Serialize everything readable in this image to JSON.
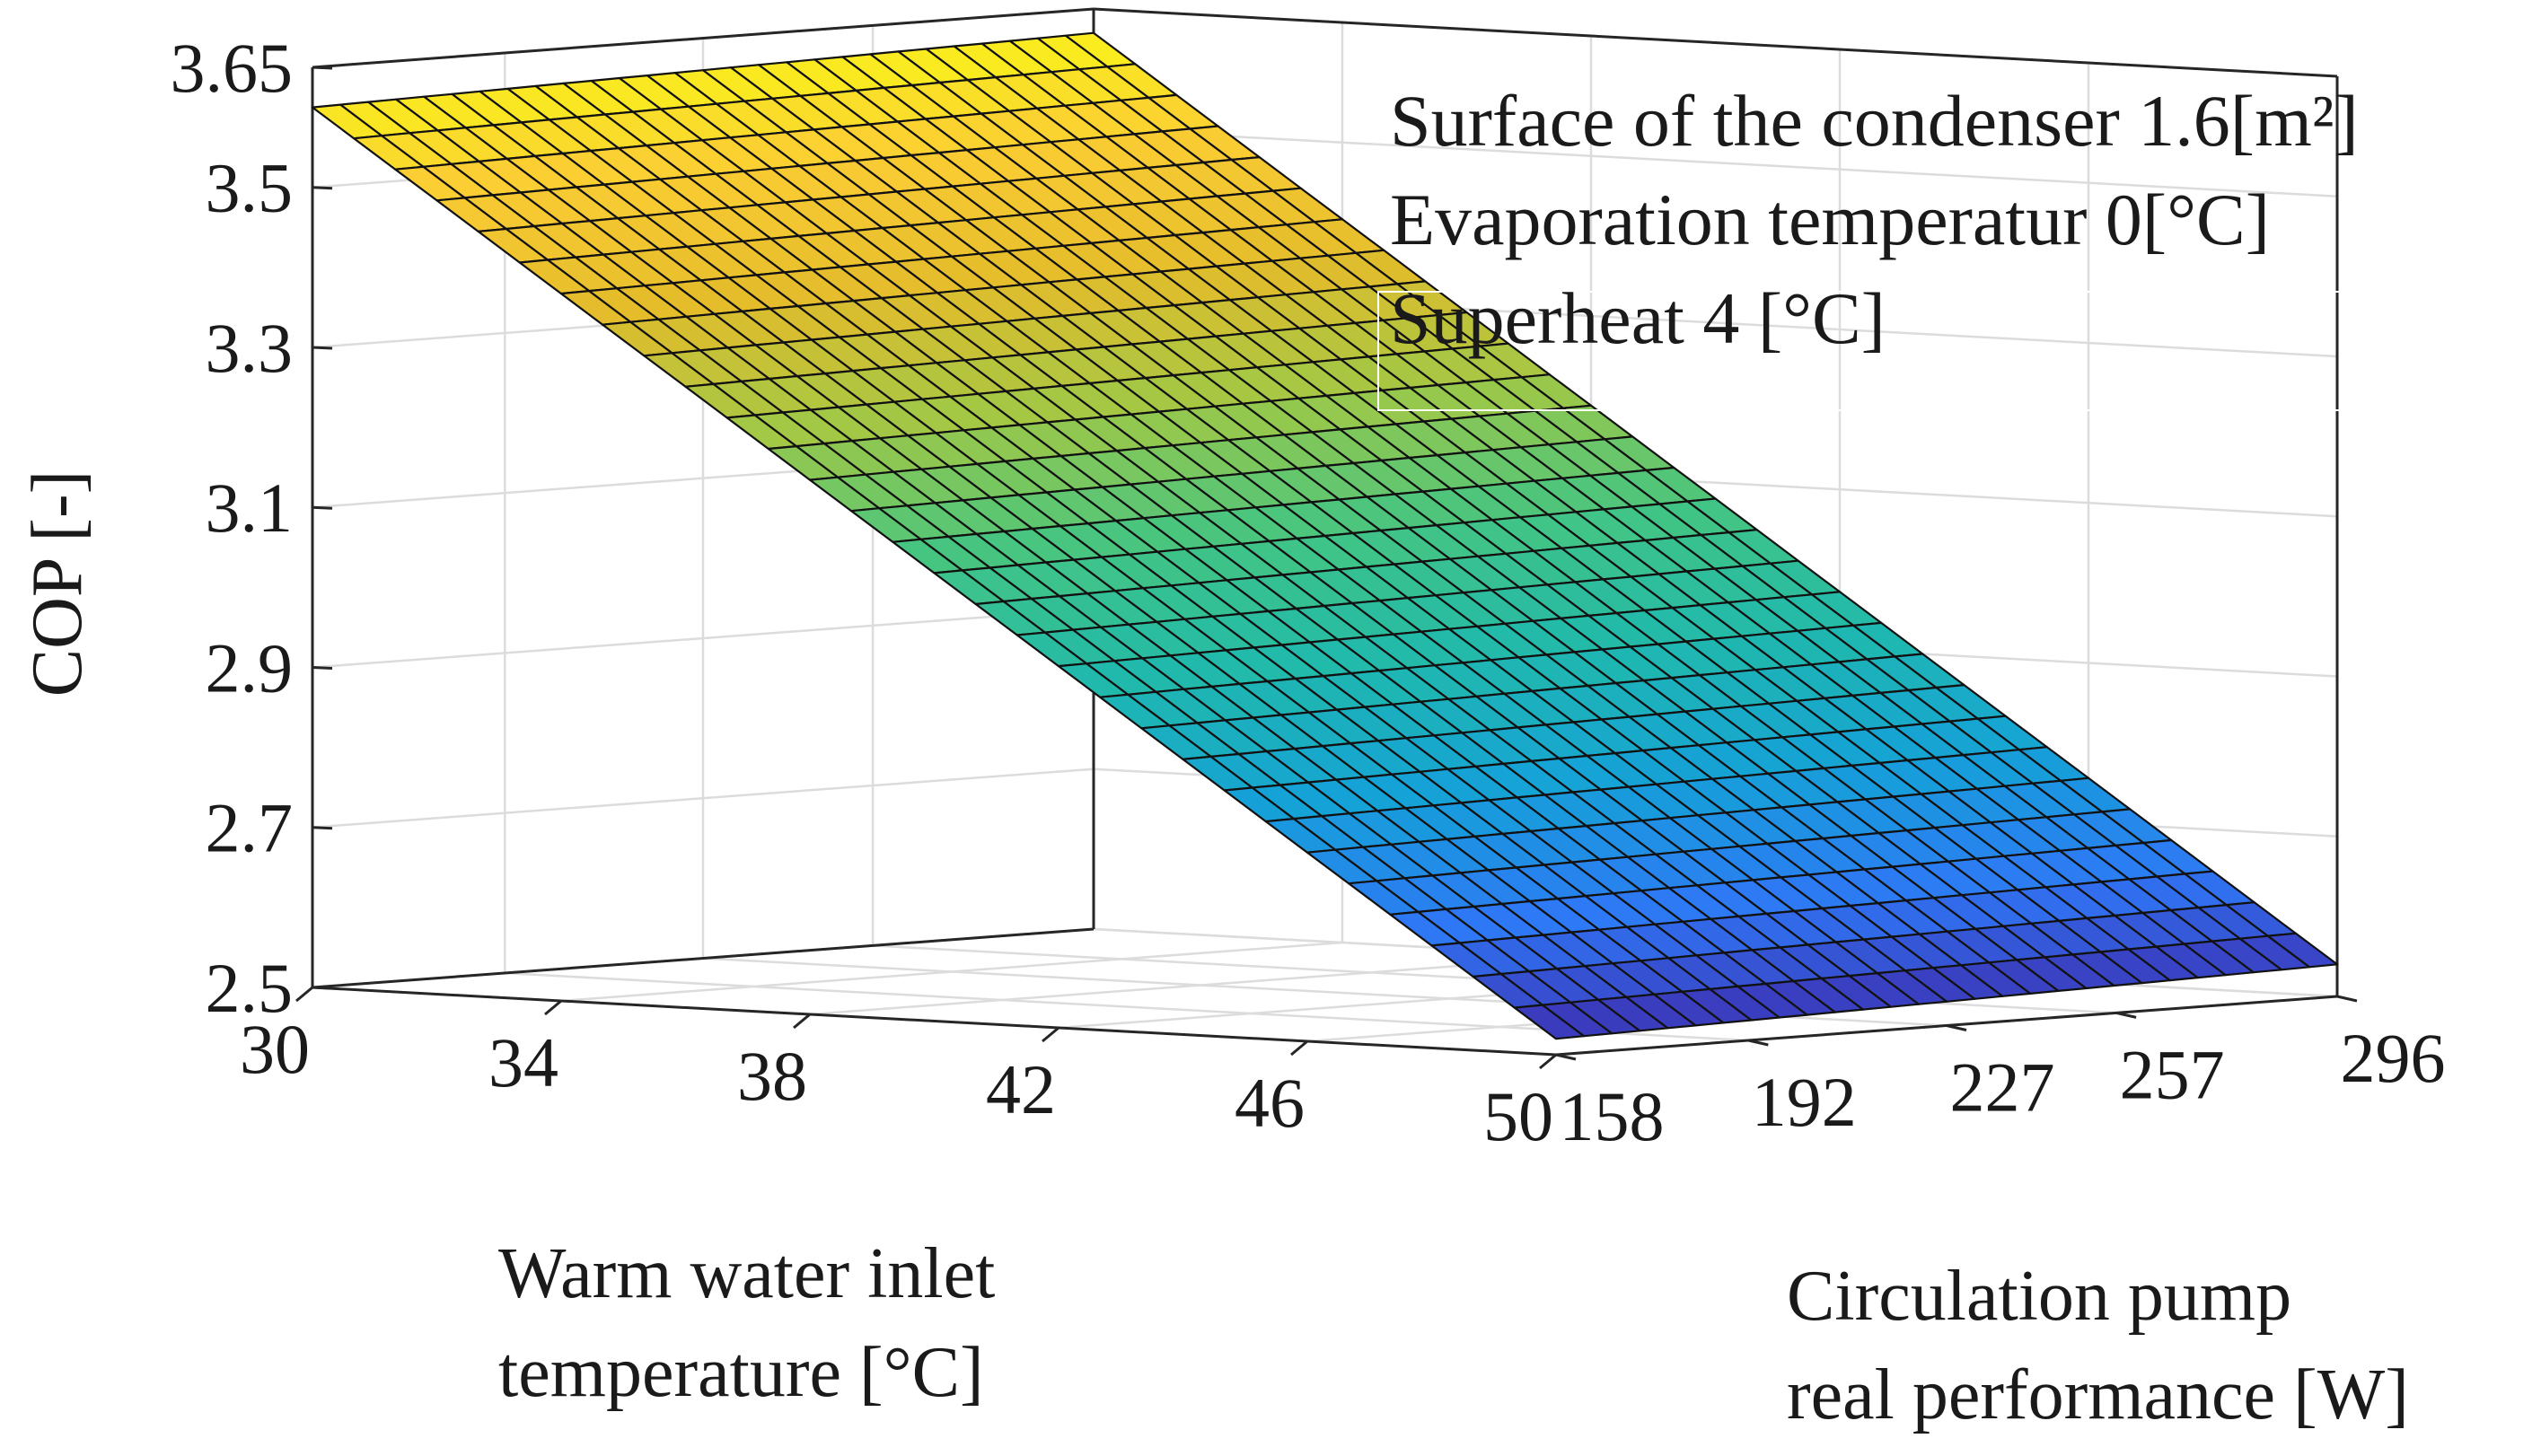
{
  "chart_data": {
    "type": "surface",
    "title": "",
    "xlabel": [
      "Warm water inlet",
      "temperature [°C]"
    ],
    "ylabel": [
      "Circulation pump",
      "real performance [W]"
    ],
    "zlabel": "COP [-]",
    "x_range": [
      30,
      50
    ],
    "y_range": [
      158,
      296
    ],
    "zlim": [
      2.5,
      3.65
    ],
    "x_ticks": [
      30,
      34,
      38,
      42,
      46,
      50
    ],
    "x_tick_labels": [
      "30",
      "34",
      "38",
      "42",
      "46",
      "50"
    ],
    "y_ticks": [
      158,
      192,
      227,
      257,
      296
    ],
    "y_tick_labels": [
      "158",
      "192",
      "227",
      "257",
      "296"
    ],
    "z_ticks": [
      2.5,
      2.7,
      2.9,
      3.1,
      3.3,
      3.5,
      3.65
    ],
    "z_tick_labels": [
      "2.5",
      "2.7",
      "2.9",
      "3.1",
      "3.3",
      "3.5",
      "3.65"
    ],
    "grid": true,
    "colormap": [
      "#3e26a8",
      "#2f77f6",
      "#15a1d8",
      "#20b9ad",
      "#44c582",
      "#a0c846",
      "#e4bc2b",
      "#fbcd34",
      "#f9fb15"
    ],
    "x_samples": 31,
    "y_samples": 29,
    "cop_corner_values": {
      "x30_y158": 3.6,
      "x30_y296": 3.62,
      "x50_y158": 2.52,
      "x50_y296": 2.54
    },
    "annotations": [
      "Surface of the condenser 1.6[m²]",
      "Evaporation temperatur 0[°C]",
      "Superheat 4 [°C]"
    ]
  }
}
